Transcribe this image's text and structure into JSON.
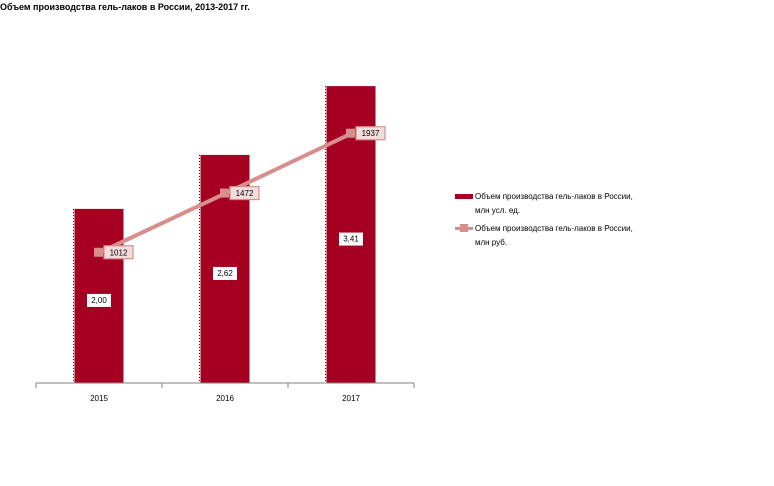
{
  "title": "Объем производства гель-лаков в России, 2013-2017 гг.",
  "chart_data": {
    "type": "bar",
    "categories": [
      "2015",
      "2016",
      "2017"
    ],
    "series": [
      {
        "name": "Объем производства гель-лаков в России, млн усл. ед.",
        "type": "bar",
        "values": [
          2.0,
          2.62,
          3.41
        ],
        "labels": [
          "2,00",
          "2,62",
          "3,41"
        ],
        "color": "#a50021"
      },
      {
        "name": "Объем производства гель-лаков в России, млн руб.",
        "type": "line",
        "values": [
          1012,
          1472,
          1937
        ],
        "labels": [
          "1012",
          "1472",
          "1937"
        ],
        "color": "#d98e8e"
      }
    ],
    "ylim_bar": [
      0,
      3.4
    ],
    "ylim_line": [
      0,
      2300
    ],
    "grid": false,
    "legend_position": "right"
  },
  "legend": {
    "bar_line1": "Объем производства гель-лаков в России,",
    "bar_line2": "млн усл. ед.",
    "line_line1": "Объем производства гель-лаков в России,",
    "line_line2": "млн руб."
  }
}
